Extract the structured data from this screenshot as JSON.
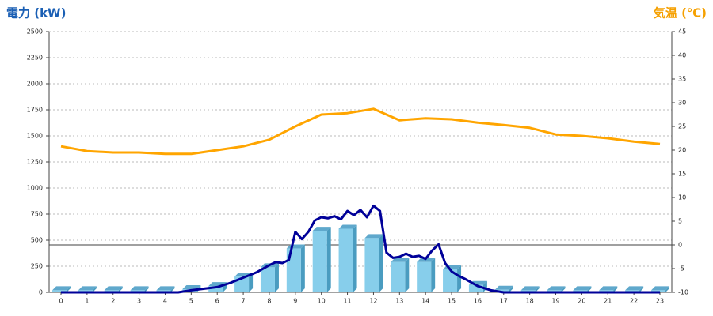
{
  "chart_data": {
    "type": "bar-line",
    "title": "電力 (kW)",
    "y2_title": "気温 (℃)",
    "categories": [
      "0",
      "1",
      "2",
      "3",
      "4",
      "5",
      "6",
      "7",
      "8",
      "9",
      "10",
      "11",
      "12",
      "13",
      "14",
      "15",
      "16",
      "17",
      "18",
      "19",
      "20",
      "21",
      "22",
      "23"
    ],
    "ylim": [
      0,
      2500
    ],
    "yticks": [
      0,
      250,
      500,
      750,
      1000,
      1250,
      1500,
      1750,
      2000,
      2250,
      2500
    ],
    "y2lim": [
      -10,
      45
    ],
    "y2ticks": [
      -10,
      -5,
      0,
      5,
      10,
      15,
      20,
      25,
      30,
      35,
      40,
      45
    ],
    "grid": true,
    "series": [
      {
        "type": "bar",
        "color": "#87ceeb",
        "values": [
          20,
          20,
          20,
          20,
          20,
          30,
          60,
          150,
          240,
          420,
          590,
          610,
          520,
          290,
          290,
          220,
          70,
          25,
          20,
          20,
          20,
          20,
          20,
          20
        ]
      },
      {
        "type": "line",
        "color": "#000099",
        "x": [
          0,
          1,
          2,
          3,
          4,
          4.5,
          5,
          5.5,
          6,
          6.5,
          7,
          7.5,
          8,
          8.25,
          8.5,
          8.75,
          9,
          9.25,
          9.5,
          9.75,
          10,
          10.25,
          10.5,
          10.75,
          11,
          11.25,
          11.5,
          11.75,
          12,
          12.25,
          12.5,
          12.75,
          13,
          13.25,
          13.5,
          13.75,
          14,
          14.25,
          14.5,
          14.75,
          15,
          15.25,
          15.5,
          16,
          16.5,
          17,
          18,
          19,
          20,
          21,
          22,
          23
        ],
        "values": [
          0,
          0,
          0,
          0,
          0,
          0,
          20,
          35,
          50,
          90,
          140,
          190,
          260,
          290,
          280,
          310,
          580,
          510,
          580,
          690,
          720,
          710,
          730,
          700,
          780,
          740,
          790,
          720,
          830,
          780,
          380,
          330,
          340,
          370,
          340,
          350,
          320,
          400,
          460,
          280,
          200,
          160,
          130,
          60,
          20,
          0,
          0,
          0,
          0,
          0,
          0,
          0
        ]
      },
      {
        "type": "line",
        "axis": "y2",
        "color": "#ffa500",
        "values": [
          20.8,
          19.8,
          19.5,
          19.5,
          19.2,
          19.2,
          20,
          20.8,
          22.2,
          25,
          27.5,
          27.8,
          28.7,
          26.3,
          26.7,
          26.5,
          25.8,
          25.3,
          24.7,
          23.3,
          23,
          22.5,
          21.8,
          21.3
        ]
      }
    ]
  }
}
